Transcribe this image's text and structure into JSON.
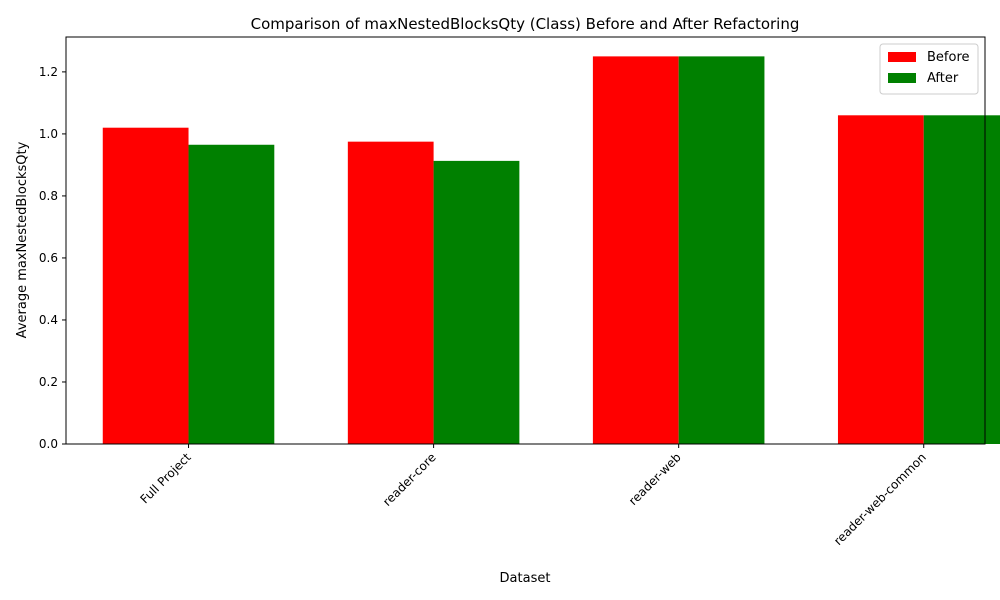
{
  "chart_data": {
    "type": "bar",
    "title": "Comparison of maxNestedBlocksQty (Class) Before and After Refactoring",
    "xlabel": "Dataset",
    "ylabel": "Average maxNestedBlocksQty",
    "categories": [
      "Full Project",
      "reader-core",
      "reader-web",
      "reader-web-common"
    ],
    "series": [
      {
        "name": "Before",
        "color": "#ff0000",
        "values": [
          1.02,
          0.975,
          1.25,
          1.06
        ]
      },
      {
        "name": "After",
        "color": "#008000",
        "values": [
          0.965,
          0.913,
          1.25,
          1.06
        ]
      }
    ],
    "ylim": [
      0,
      1.3125
    ],
    "yticks": [
      0.0,
      0.2,
      0.4,
      0.6,
      0.8,
      1.0,
      1.2
    ],
    "grid": false,
    "legend_position": "top-right"
  }
}
